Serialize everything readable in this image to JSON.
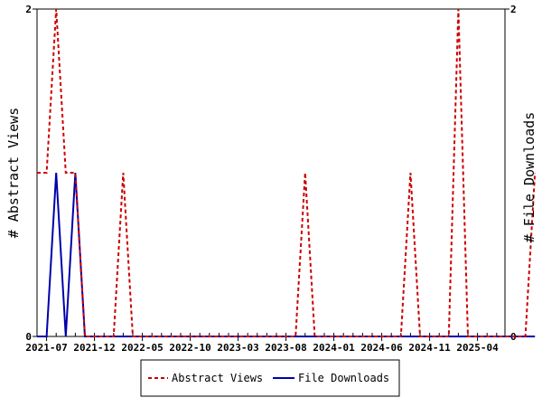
{
  "chart_data": {
    "type": "line",
    "xlabel": "",
    "ylabel": "# Abstract Views",
    "ylabel_right": "# File Downloads",
    "ylim": [
      0,
      2
    ],
    "yticks": [
      "0",
      "2"
    ],
    "yticks_right": [
      "0",
      "2"
    ],
    "x_tick_labels": [
      "2021-07",
      "2021-12",
      "2022-05",
      "2022-10",
      "2023-03",
      "2023-08",
      "2024-01",
      "2024-06",
      "2024-11",
      "2025-04"
    ],
    "x": [
      "2021-06",
      "2021-07",
      "2021-08",
      "2021-09",
      "2021-10",
      "2021-11",
      "2021-12",
      "2022-01",
      "2022-02",
      "2022-03",
      "2022-04",
      "2022-05",
      "2022-06",
      "2022-07",
      "2022-08",
      "2022-09",
      "2022-10",
      "2022-11",
      "2022-12",
      "2023-01",
      "2023-02",
      "2023-03",
      "2023-04",
      "2023-05",
      "2023-06",
      "2023-07",
      "2023-08",
      "2023-09",
      "2023-10",
      "2023-11",
      "2023-12",
      "2024-01",
      "2024-02",
      "2024-03",
      "2024-04",
      "2024-05",
      "2024-06",
      "2024-07",
      "2024-08",
      "2024-09",
      "2024-10",
      "2024-11",
      "2024-12",
      "2025-01",
      "2025-02",
      "2025-03",
      "2025-04",
      "2025-05",
      "2025-06",
      "2025-07",
      "2025-08",
      "2025-09",
      "2025-10"
    ],
    "series": [
      {
        "name": "Abstract Views",
        "color": "#cc0000",
        "dash": "dashed",
        "values": [
          1,
          1,
          2,
          1,
          1,
          0,
          0,
          0,
          0,
          1,
          0,
          0,
          0,
          0,
          0,
          0,
          0,
          0,
          0,
          0,
          0,
          0,
          0,
          0,
          0,
          0,
          0,
          0,
          1,
          0,
          0,
          0,
          0,
          0,
          0,
          0,
          0,
          0,
          0,
          1,
          0,
          0,
          0,
          0,
          2,
          0,
          0,
          0,
          0,
          0,
          0,
          0,
          1
        ]
      },
      {
        "name": "File Downloads",
        "color": "#0000aa",
        "dash": "solid",
        "values": [
          0,
          0,
          1,
          0,
          1,
          0,
          0,
          0,
          0,
          0,
          0,
          0,
          0,
          0,
          0,
          0,
          0,
          0,
          0,
          0,
          0,
          0,
          0,
          0,
          0,
          0,
          0,
          0,
          0,
          0,
          0,
          0,
          0,
          0,
          0,
          0,
          0,
          0,
          0,
          0,
          0,
          0,
          0,
          0,
          0,
          0,
          0,
          0,
          0,
          0,
          0,
          0,
          0
        ]
      }
    ],
    "grid": false,
    "legend": "bottom"
  }
}
